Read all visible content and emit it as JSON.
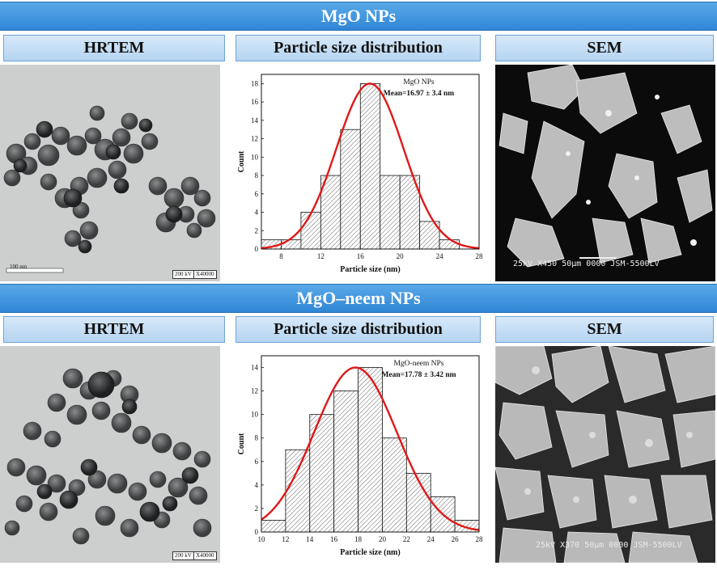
{
  "sections": [
    {
      "banner": "MgO  NPs",
      "headers": {
        "hrtem": "HRTEM",
        "psd": "Particle size distribution",
        "sem": "SEM"
      },
      "tem_labels": {
        "scale": "100 nm",
        "kv": "200 kV",
        "mag": "X40000"
      },
      "sem_label": "25kV    X450   50µm 0000 JSM-5500LV"
    },
    {
      "banner": "MgO–neem NPs",
      "headers": {
        "hrtem": "HRTEM",
        "psd": "Particle size distribution",
        "sem": "SEM"
      },
      "tem_labels": {
        "scale": "",
        "kv": "200 kV",
        "mag": "X40000"
      },
      "sem_label": "25kV   X370  50µm 0000 JSM-5500LV"
    }
  ],
  "chart_data": [
    {
      "type": "bar",
      "subtype": "histogram with normal fit",
      "annotation": [
        "MgO NPs",
        "Mean=16.97 ± 3.4 nm"
      ],
      "xlabel": "Particle size (nm)",
      "ylabel": "Count",
      "xlim": [
        6,
        28
      ],
      "ylim": [
        0,
        19
      ],
      "xticks": [
        8,
        12,
        16,
        20,
        24,
        28
      ],
      "yticks": [
        0,
        2,
        4,
        6,
        8,
        10,
        12,
        14,
        16,
        18
      ],
      "bin_width": 2,
      "bins": [
        {
          "start": 6,
          "count": 1
        },
        {
          "start": 8,
          "count": 1
        },
        {
          "start": 10,
          "count": 4
        },
        {
          "start": 12,
          "count": 8
        },
        {
          "start": 14,
          "count": 13
        },
        {
          "start": 16,
          "count": 18
        },
        {
          "start": 18,
          "count": 8
        },
        {
          "start": 20,
          "count": 8
        },
        {
          "start": 22,
          "count": 3
        },
        {
          "start": 24,
          "count": 1
        }
      ],
      "fit": {
        "mean": 16.97,
        "sd": 3.4,
        "peak": 18,
        "color": "#e01818"
      },
      "hatch_color": "#555555"
    },
    {
      "type": "bar",
      "subtype": "histogram with normal fit",
      "annotation": [
        "MgO-neem NPs",
        "Mean=17.78 ± 3.42 nm"
      ],
      "xlabel": "Particle size (nm)",
      "ylabel": "Count",
      "xlim": [
        10,
        28
      ],
      "ylim": [
        0,
        15
      ],
      "xticks": [
        10,
        12,
        14,
        16,
        18,
        20,
        22,
        24,
        26,
        28
      ],
      "yticks": [
        0,
        2,
        4,
        6,
        8,
        10,
        12,
        14
      ],
      "bin_width": 2,
      "bins": [
        {
          "start": 10,
          "count": 1
        },
        {
          "start": 12,
          "count": 7
        },
        {
          "start": 14,
          "count": 10
        },
        {
          "start": 16,
          "count": 12
        },
        {
          "start": 18,
          "count": 14
        },
        {
          "start": 20,
          "count": 8
        },
        {
          "start": 22,
          "count": 5
        },
        {
          "start": 24,
          "count": 3
        },
        {
          "start": 26,
          "count": 1
        }
      ],
      "fit": {
        "mean": 17.78,
        "sd": 3.42,
        "peak": 14,
        "color": "#e01818"
      },
      "hatch_color": "#555555"
    }
  ]
}
